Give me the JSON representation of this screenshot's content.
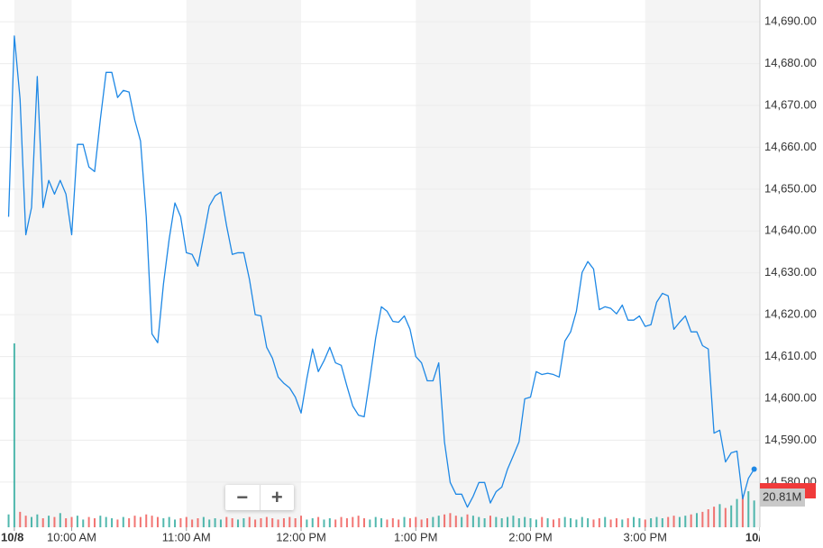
{
  "chart_data": {
    "type": "line",
    "x": [
      567,
      570,
      573,
      576,
      579,
      582,
      585,
      588,
      591,
      594,
      597,
      600,
      603,
      606,
      609,
      612,
      615,
      618,
      621,
      624,
      627,
      630,
      633,
      636,
      639,
      642,
      645,
      648,
      651,
      654,
      657,
      660,
      663,
      666,
      669,
      672,
      675,
      678,
      681,
      684,
      687,
      690,
      693,
      696,
      699,
      702,
      705,
      708,
      711,
      714,
      717,
      720,
      723,
      726,
      729,
      732,
      735,
      738,
      741,
      744,
      747,
      750,
      753,
      756,
      759,
      762,
      765,
      768,
      771,
      774,
      777,
      780,
      783,
      786,
      789,
      792,
      795,
      798,
      801,
      804,
      807,
      810,
      813,
      816,
      819,
      822,
      825,
      828,
      831,
      834,
      837,
      840,
      843,
      846,
      849,
      852,
      855,
      858,
      861,
      864,
      867,
      870,
      873,
      876,
      879,
      882,
      885,
      888,
      891,
      894,
      897,
      900,
      903,
      906,
      909,
      912,
      915,
      918,
      921,
      924,
      927,
      930,
      933,
      936,
      939,
      942,
      945,
      948,
      951,
      954,
      957
    ],
    "series": [
      {
        "color": "#1e88e5",
        "values": [
          14643.4,
          14686.6,
          14671.5,
          14639.1,
          14645.6,
          14676.9,
          14645.6,
          14652.1,
          14648.8,
          14652.1,
          14648.8,
          14639.1,
          14660.7,
          14660.7,
          14655.3,
          14654.2,
          14666.7,
          14677.9,
          14677.9,
          14671.9,
          14673.6,
          14673.2,
          14666.5,
          14661.5,
          14643.4,
          14615.4,
          14613.3,
          14627.3,
          14638.1,
          14646.7,
          14643.4,
          14634.8,
          14634.4,
          14631.6,
          14638.7,
          14646.0,
          14648.4,
          14649.3,
          14641.3,
          14634.4,
          14634.8,
          14634.8,
          14628.4,
          14620.0,
          14619.7,
          14612.2,
          14609.6,
          14605.1,
          14603.6,
          14602.5,
          14600.3,
          14596.5,
          14604.7,
          14611.8,
          14606.4,
          14609.0,
          14612.2,
          14608.5,
          14607.9,
          14602.9,
          14598.2,
          14596.0,
          14595.6,
          14604.7,
          14614.4,
          14621.9,
          14620.8,
          14618.4,
          14618.2,
          14619.7,
          14616.5,
          14610.0,
          14608.5,
          14604.2,
          14604.2,
          14608.5,
          14589.6,
          14579.9,
          14577.1,
          14577.1,
          14574.0,
          14576.6,
          14579.9,
          14579.9,
          14575.0,
          14577.7,
          14578.8,
          14583.1,
          14586.3,
          14589.6,
          14599.9,
          14600.3,
          14606.4,
          14605.7,
          14606.0,
          14605.7,
          14605.1,
          14613.7,
          14615.9,
          14620.8,
          14630.1,
          14632.7,
          14630.9,
          14621.2,
          14621.9,
          14621.5,
          14620.2,
          14622.3,
          14618.7,
          14618.7,
          14619.7,
          14617.2,
          14617.6,
          14623.0,
          14625.1,
          14624.5,
          14616.5,
          14618.2,
          14619.7,
          14615.9,
          14615.9,
          14612.6,
          14611.8,
          14591.7,
          14592.4,
          14584.8,
          14587.0,
          14587.4,
          14576.0,
          14580.9,
          14583.1
        ]
      }
    ],
    "volume": {
      "values": [
        10,
        143,
        12,
        9,
        8,
        10,
        7,
        9,
        8,
        11,
        7,
        8,
        9,
        6,
        8,
        7,
        9,
        8,
        7,
        6,
        8,
        7,
        9,
        8,
        10,
        9,
        8,
        7,
        8,
        6,
        7,
        8,
        6,
        7,
        8,
        6,
        7,
        6,
        8,
        7,
        6,
        7,
        8,
        6,
        7,
        8,
        7,
        6,
        7,
        8,
        7,
        9,
        6,
        7,
        8,
        6,
        7,
        6,
        8,
        7,
        8,
        9,
        7,
        6,
        8,
        7,
        6,
        7,
        6,
        8,
        7,
        8,
        6,
        7,
        8,
        9,
        10,
        11,
        9,
        8,
        10,
        9,
        8,
        7,
        9,
        8,
        7,
        8,
        9,
        7,
        8,
        7,
        6,
        8,
        7,
        6,
        7,
        8,
        7,
        6,
        8,
        7,
        6,
        7,
        8,
        6,
        7,
        6,
        7,
        8,
        7,
        6,
        7,
        8,
        7,
        8,
        9,
        8,
        9,
        10,
        11,
        12,
        14,
        16,
        18,
        15,
        17,
        22,
        25,
        28,
        20.81
      ],
      "up_color": "#26a69a",
      "down_color": "#ef5350",
      "ylim": [
        0,
        410
      ],
      "last_label": "20.81M"
    },
    "xlim": [
      562.5,
      960
    ],
    "xticks": [
      {
        "value": 570,
        "label": "10/8"
      },
      {
        "value": 600,
        "label": "10:00 AM"
      },
      {
        "value": 660,
        "label": "11:00 AM"
      },
      {
        "value": 720,
        "label": "12:00 PM"
      },
      {
        "value": 780,
        "label": "1:00 PM"
      },
      {
        "value": 840,
        "label": "2:00 PM"
      },
      {
        "value": 900,
        "label": "3:00 PM"
      },
      {
        "value": 960,
        "label": "10/"
      }
    ],
    "ylim": [
      14569.2,
      14695.2
    ],
    "yticks": [
      {
        "value": 14580,
        "label": "14,580.00"
      },
      {
        "value": 14590,
        "label": "14,590.00"
      },
      {
        "value": 14600,
        "label": "14,600.00"
      },
      {
        "value": 14610,
        "label": "14,610.00"
      },
      {
        "value": 14620,
        "label": "14,620.00"
      },
      {
        "value": 14630,
        "label": "14,630.00"
      },
      {
        "value": 14640,
        "label": "14,640.00"
      },
      {
        "value": 14650,
        "label": "14,650.00"
      },
      {
        "value": 14660,
        "label": "14,660.00"
      },
      {
        "value": 14670,
        "label": "14,670.00"
      },
      {
        "value": 14680,
        "label": "14,680.00"
      },
      {
        "value": 14690,
        "label": "14,690.00"
      }
    ],
    "grid": true,
    "zoom_controls": [
      "−",
      "+"
    ]
  }
}
